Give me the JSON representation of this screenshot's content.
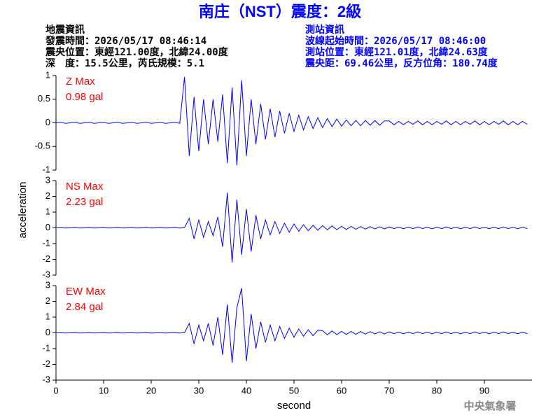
{
  "header": {
    "title": "南庄（NST）震度：2級",
    "left": [
      "地震資訊",
      "發震時間：2026/05/17 08:46:14",
      "震央位置：東經121.00度，北緯24.00度",
      "深　度：15.5公里，芮氏規模：5.1"
    ],
    "right": [
      "測站資訊",
      "波線起始時間：2026/05/17 08:46:00",
      "測站位置：東經121.01度，北緯24.63度",
      "震央距：69.46公里，反方位角：180.74度"
    ],
    "footer": "中央氣象署"
  },
  "chart_data": [
    {
      "type": "line",
      "ylabel": "acceleration",
      "color": "#0000ff",
      "annotations": [
        "Z Max",
        "0.98 gal"
      ],
      "xlim": [
        0,
        100
      ],
      "ylim": [
        -1,
        1
      ],
      "yticks": [
        -1,
        -0.5,
        0,
        0.5,
        1
      ],
      "x": [
        0,
        1,
        2,
        3,
        4,
        5,
        6,
        7,
        8,
        9,
        10,
        11,
        12,
        13,
        14,
        15,
        16,
        17,
        18,
        19,
        20,
        21,
        22,
        23,
        24,
        25,
        26,
        27,
        28,
        29,
        30,
        31,
        32,
        33,
        34,
        35,
        36,
        37,
        38,
        39,
        40,
        41,
        42,
        43,
        44,
        45,
        46,
        47,
        48,
        49,
        50,
        51,
        52,
        53,
        54,
        55,
        56,
        57,
        58,
        59,
        60,
        61,
        62,
        63,
        64,
        65,
        66,
        67,
        68,
        69,
        70,
        71,
        72,
        73,
        74,
        75,
        76,
        77,
        78,
        79,
        80,
        81,
        82,
        83,
        84,
        85,
        86,
        87,
        88,
        89,
        90,
        91,
        92,
        93,
        94,
        95,
        96,
        97,
        98,
        99
      ],
      "values": [
        0,
        0.01,
        -0.01,
        0,
        0.01,
        -0.01,
        0,
        0.01,
        -0.01,
        0,
        0.01,
        -0.01,
        0,
        0.01,
        -0.01,
        0,
        0.01,
        -0.01,
        0,
        0.01,
        -0.01,
        0,
        0.01,
        -0.01,
        0,
        0.01,
        -0.01,
        0.97,
        -0.7,
        0.55,
        -0.6,
        0.5,
        -0.45,
        0.5,
        -0.4,
        0.6,
        -0.85,
        0.75,
        -0.9,
        0.9,
        -0.7,
        0.5,
        -0.45,
        0.4,
        -0.35,
        0.3,
        -0.3,
        0.25,
        -0.22,
        0.2,
        -0.18,
        0.16,
        -0.15,
        0.13,
        -0.12,
        0.11,
        -0.1,
        0.09,
        -0.08,
        0.08,
        -0.07,
        0.06,
        -0.06,
        0.05,
        -0.06,
        0.05,
        -0.05,
        0.05,
        -0.05,
        0.04,
        0.04,
        -0.04,
        0.03,
        -0.04,
        0.03,
        -0.03,
        0.04,
        -0.04,
        0.03,
        -0.04,
        0.03,
        -0.03,
        0.04,
        -0.04,
        0.03,
        -0.04,
        0.03,
        -0.03,
        0.04,
        -0.04,
        0.03,
        -0.04,
        0.03,
        -0.03,
        0.04,
        -0.04,
        0.03,
        -0.04,
        0.03,
        -0.03
      ]
    },
    {
      "type": "line",
      "color": "#0000ff",
      "annotations": [
        "NS Max",
        "2.23 gal"
      ],
      "xlim": [
        0,
        100
      ],
      "ylim": [
        -3,
        3
      ],
      "yticks": [
        -3,
        -2,
        -1,
        0,
        1,
        2,
        3
      ],
      "x": [
        0,
        1,
        2,
        3,
        4,
        5,
        6,
        7,
        8,
        9,
        10,
        11,
        12,
        13,
        14,
        15,
        16,
        17,
        18,
        19,
        20,
        21,
        22,
        23,
        24,
        25,
        26,
        27,
        28,
        29,
        30,
        31,
        32,
        33,
        34,
        35,
        36,
        37,
        38,
        39,
        40,
        41,
        42,
        43,
        44,
        45,
        46,
        47,
        48,
        49,
        50,
        51,
        52,
        53,
        54,
        55,
        56,
        57,
        58,
        59,
        60,
        61,
        62,
        63,
        64,
        65,
        66,
        67,
        68,
        69,
        70,
        71,
        72,
        73,
        74,
        75,
        76,
        77,
        78,
        79,
        80,
        81,
        82,
        83,
        84,
        85,
        86,
        87,
        88,
        89,
        90,
        91,
        92,
        93,
        94,
        95,
        96,
        97,
        98,
        99
      ],
      "values": [
        0,
        0.01,
        -0.01,
        0,
        0.01,
        -0.01,
        0,
        0.01,
        -0.01,
        0,
        0.01,
        -0.01,
        0,
        0.01,
        -0.01,
        0,
        0.01,
        -0.01,
        0,
        0.01,
        -0.01,
        0,
        0.01,
        -0.01,
        0,
        0.01,
        -0.01,
        0.02,
        0.6,
        -0.7,
        0.5,
        -0.6,
        0.4,
        -0.5,
        0.7,
        -1.2,
        2.23,
        -2.2,
        1.8,
        -1.7,
        1.2,
        -1.5,
        0.8,
        -0.7,
        0.5,
        -0.45,
        0.4,
        -0.35,
        0.3,
        -0.28,
        0.25,
        -0.22,
        0.2,
        -0.18,
        0.16,
        -0.15,
        0.14,
        -0.12,
        0.12,
        -0.11,
        0.1,
        -0.1,
        0.09,
        -0.09,
        0.08,
        -0.08,
        0.08,
        -0.07,
        0.07,
        -0.07,
        0.06,
        -0.05,
        0.05,
        -0.06,
        0.05,
        -0.05,
        0.06,
        -0.05,
        0.05,
        -0.06,
        0.05,
        -0.05,
        0.06,
        -0.05,
        0.05,
        -0.06,
        0.05,
        -0.05,
        0.06,
        -0.05,
        0.05,
        -0.06,
        0.05,
        -0.05,
        0.06,
        -0.05,
        0.05,
        -0.06,
        0.05,
        -0.05
      ]
    },
    {
      "type": "line",
      "color": "#0000ff",
      "xlabel": "second",
      "annotations": [
        "EW Max",
        "2.84 gal"
      ],
      "xlim": [
        0,
        100
      ],
      "xticks": [
        0,
        10,
        20,
        30,
        40,
        50,
        60,
        70,
        80,
        90
      ],
      "ylim": [
        -3,
        3
      ],
      "yticks": [
        -3,
        -2,
        -1,
        0,
        1,
        2,
        3
      ],
      "x": [
        0,
        1,
        2,
        3,
        4,
        5,
        6,
        7,
        8,
        9,
        10,
        11,
        12,
        13,
        14,
        15,
        16,
        17,
        18,
        19,
        20,
        21,
        22,
        23,
        24,
        25,
        26,
        27,
        28,
        29,
        30,
        31,
        32,
        33,
        34,
        35,
        36,
        37,
        38,
        39,
        40,
        41,
        42,
        43,
        44,
        45,
        46,
        47,
        48,
        49,
        50,
        51,
        52,
        53,
        54,
        55,
        56,
        57,
        58,
        59,
        60,
        61,
        62,
        63,
        64,
        65,
        66,
        67,
        68,
        69,
        70,
        71,
        72,
        73,
        74,
        75,
        76,
        77,
        78,
        79,
        80,
        81,
        82,
        83,
        84,
        85,
        86,
        87,
        88,
        89,
        90,
        91,
        92,
        93,
        94,
        95,
        96,
        97,
        98,
        99
      ],
      "values": [
        0,
        0.01,
        -0.01,
        0,
        0.01,
        -0.01,
        0,
        0.01,
        -0.01,
        0,
        0.01,
        -0.01,
        0,
        0.01,
        -0.01,
        0,
        0.01,
        -0.01,
        0,
        0.01,
        -0.01,
        0,
        0.01,
        -0.01,
        0,
        0.01,
        -0.01,
        0.02,
        0.6,
        -0.7,
        0.5,
        -0.5,
        0.6,
        -0.8,
        1.0,
        -1.4,
        1.8,
        -1.9,
        1.6,
        2.84,
        -1.8,
        1.2,
        -1.0,
        0.7,
        -0.6,
        0.5,
        -0.5,
        0.4,
        -0.35,
        0.3,
        -0.28,
        0.25,
        -0.22,
        0.2,
        -0.18,
        0.16,
        0.14,
        -0.12,
        0.12,
        -0.11,
        0.1,
        -0.1,
        0.09,
        -0.09,
        0.08,
        -0.08,
        0.08,
        -0.07,
        0.07,
        -0.07,
        0.06,
        -0.05,
        0.05,
        -0.06,
        0.05,
        -0.05,
        0.06,
        -0.05,
        0.05,
        -0.06,
        0.05,
        -0.05,
        0.06,
        -0.05,
        0.05,
        -0.06,
        0.05,
        -0.05,
        0.06,
        -0.05,
        0.05,
        -0.06,
        0.05,
        -0.05,
        0.06,
        -0.05,
        0.05,
        -0.06,
        0.05,
        -0.05
      ]
    }
  ]
}
